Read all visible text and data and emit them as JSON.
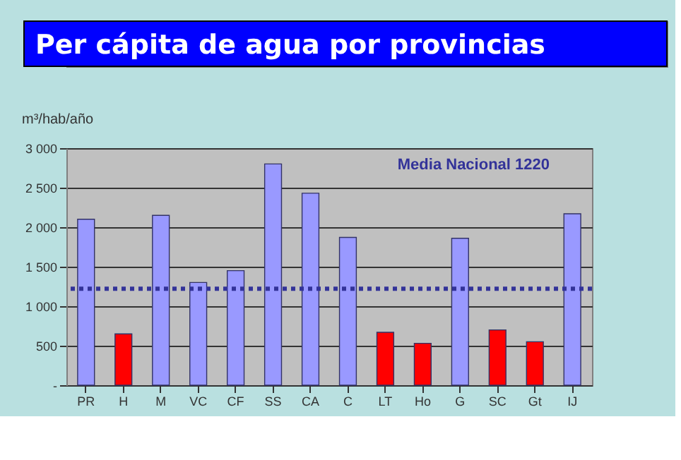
{
  "chart_data": {
    "type": "bar",
    "title": "Per cápita de agua por provincias",
    "ylabel": "m³/hab/año",
    "categories": [
      "PR",
      "H",
      "M",
      "VC",
      "CF",
      "SS",
      "CA",
      "C",
      "LT",
      "Ho",
      "G",
      "SC",
      "Gt",
      "IJ"
    ],
    "values": [
      2100,
      650,
      2150,
      1300,
      1450,
      2800,
      2430,
      1870,
      670,
      530,
      1860,
      700,
      550,
      2170
    ],
    "colors": [
      "#9999ff",
      "#ff0000",
      "#9999ff",
      "#9999ff",
      "#9999ff",
      "#9999ff",
      "#9999ff",
      "#9999ff",
      "#ff0000",
      "#ff0000",
      "#9999ff",
      "#ff0000",
      "#ff0000",
      "#9999ff"
    ],
    "ylim": [
      0,
      3000
    ],
    "yticks": [
      {
        "value": 0,
        "label": "-"
      },
      500,
      {
        "value": 1000,
        "label": "1 000"
      },
      {
        "value": 1500,
        "label": "1 500"
      },
      {
        "value": 2000,
        "label": "2 000"
      },
      {
        "value": 2500,
        "label": "2 500"
      },
      {
        "value": 3000,
        "label": "3 000"
      }
    ],
    "grid": "y",
    "ref_lines": [
      {
        "axis": "y",
        "value": 1220,
        "label": "Media Nacional 1220",
        "color": "#333399",
        "line_style": "dotted"
      }
    ]
  }
}
